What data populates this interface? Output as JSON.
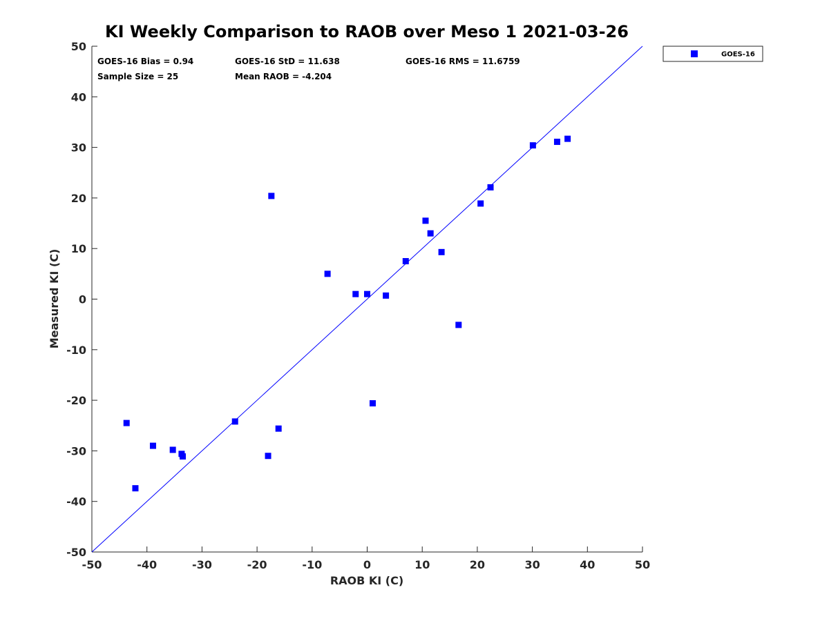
{
  "chart_data": {
    "type": "scatter",
    "title": "KI Weekly Comparison to RAOB over Meso 1 2021-03-26",
    "xlabel": "RAOB KI (C)",
    "ylabel": "Measured KI (C)",
    "xlim": [
      -50,
      50
    ],
    "ylim": [
      -50,
      50
    ],
    "xticks": [
      -50,
      -40,
      -30,
      -20,
      -10,
      0,
      10,
      20,
      30,
      40,
      50
    ],
    "yticks": [
      -50,
      -40,
      -30,
      -20,
      -10,
      0,
      10,
      20,
      30,
      40,
      50
    ],
    "xtick_labels": [
      "-50",
      "-40",
      "-30",
      "-20",
      "-10",
      "0",
      "10",
      "20",
      "30",
      "40",
      "50"
    ],
    "ytick_labels": [
      "-50",
      "-40",
      "-30",
      "-20",
      "-10",
      "0",
      "10",
      "20",
      "30",
      "40",
      "50"
    ],
    "grid": false,
    "legend_position": "outside-top-right",
    "reference_line": {
      "type": "one-to-one",
      "color": "#0000ff"
    },
    "series": [
      {
        "name": "GOES-16",
        "color": "#0000ff",
        "marker": "square",
        "points": [
          [
            -43.7,
            -24.5
          ],
          [
            -42.1,
            -37.4
          ],
          [
            -38.9,
            -29.0
          ],
          [
            -35.3,
            -29.8
          ],
          [
            -33.7,
            -30.6
          ],
          [
            -33.5,
            -31.1
          ],
          [
            -24.0,
            -24.2
          ],
          [
            -18.0,
            -31.0
          ],
          [
            -17.4,
            20.4
          ],
          [
            -16.1,
            -25.6
          ],
          [
            -7.2,
            5.0
          ],
          [
            -2.1,
            1.0
          ],
          [
            0.0,
            1.0
          ],
          [
            1.0,
            -20.6
          ],
          [
            3.4,
            0.7
          ],
          [
            7.0,
            7.5
          ],
          [
            10.6,
            15.5
          ],
          [
            11.5,
            13.0
          ],
          [
            13.5,
            9.3
          ],
          [
            16.6,
            -5.1
          ],
          [
            20.6,
            18.9
          ],
          [
            22.4,
            22.1
          ],
          [
            30.1,
            30.4
          ],
          [
            34.5,
            31.1
          ],
          [
            36.4,
            31.7
          ]
        ]
      }
    ],
    "stats": {
      "bias": "GOES-16 Bias = 0.94",
      "std": "GOES-16 StD = 11.638",
      "rms": "GOES-16 RMS = 11.6759",
      "sample_size": "Sample Size = 25",
      "mean_raob": "Mean RAOB = -4.204"
    }
  }
}
